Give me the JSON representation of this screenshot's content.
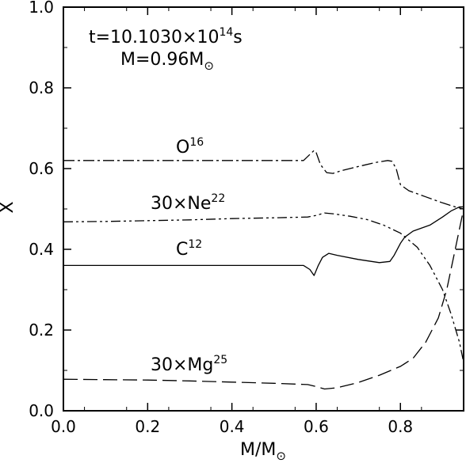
{
  "chart_data": {
    "type": "line",
    "title": "",
    "xlabel": "M/M⊙",
    "ylabel": "X",
    "xlim": [
      0.0,
      0.95
    ],
    "ylim": [
      0.0,
      1.0
    ],
    "x_ticks": [
      0.0,
      0.2,
      0.4,
      0.6,
      0.8
    ],
    "y_ticks": [
      0.0,
      0.2,
      0.4,
      0.6,
      0.8,
      1.0
    ],
    "x_tick_labels": [
      "0.0",
      "0.2",
      "0.4",
      "0.6",
      "0.8"
    ],
    "y_tick_labels": [
      "0.0",
      "0.2",
      "0.4",
      "0.6",
      "0.8",
      "1.0"
    ],
    "grid": false,
    "legend": "none",
    "annotations": {
      "time": {
        "prefix": "t=10.1030×10",
        "exponent": "14",
        "suffix": "s"
      },
      "mass": {
        "prefix": "M=0.96M",
        "subscript": "⊙"
      }
    },
    "series": [
      {
        "name": "O",
        "label_mass": "16",
        "style": "dash-dot",
        "x": [
          0.0,
          0.1,
          0.2,
          0.3,
          0.4,
          0.5,
          0.57,
          0.585,
          0.595,
          0.6,
          0.61,
          0.625,
          0.64,
          0.66,
          0.7,
          0.74,
          0.77,
          0.78,
          0.79,
          0.8,
          0.82,
          0.86,
          0.9,
          0.93,
          0.95
        ],
        "y": [
          0.62,
          0.62,
          0.62,
          0.62,
          0.62,
          0.62,
          0.62,
          0.635,
          0.645,
          0.64,
          0.61,
          0.59,
          0.588,
          0.595,
          0.605,
          0.615,
          0.62,
          0.618,
          0.6,
          0.56,
          0.545,
          0.53,
          0.515,
          0.505,
          0.5
        ]
      },
      {
        "name": "30×Ne",
        "label_mass": "22",
        "style": "dash-dot-dot",
        "x": [
          0.0,
          0.1,
          0.2,
          0.3,
          0.4,
          0.5,
          0.58,
          0.6,
          0.62,
          0.64,
          0.68,
          0.72,
          0.76,
          0.8,
          0.84,
          0.87,
          0.9,
          0.92,
          0.94,
          0.95
        ],
        "y": [
          0.468,
          0.469,
          0.471,
          0.473,
          0.476,
          0.478,
          0.48,
          0.484,
          0.49,
          0.488,
          0.482,
          0.474,
          0.46,
          0.44,
          0.405,
          0.36,
          0.3,
          0.24,
          0.17,
          0.12
        ]
      },
      {
        "name": "C",
        "label_mass": "12",
        "style": "solid",
        "x": [
          0.0,
          0.1,
          0.2,
          0.3,
          0.4,
          0.5,
          0.57,
          0.585,
          0.595,
          0.605,
          0.615,
          0.63,
          0.65,
          0.7,
          0.75,
          0.775,
          0.785,
          0.8,
          0.81,
          0.83,
          0.87,
          0.9,
          0.92,
          0.94,
          0.95
        ],
        "y": [
          0.36,
          0.36,
          0.36,
          0.36,
          0.36,
          0.36,
          0.36,
          0.35,
          0.335,
          0.36,
          0.38,
          0.39,
          0.385,
          0.375,
          0.367,
          0.37,
          0.385,
          0.415,
          0.43,
          0.445,
          0.46,
          0.48,
          0.495,
          0.505,
          0.505
        ]
      },
      {
        "name": "30×Mg",
        "label_mass": "25",
        "style": "long-dash",
        "x": [
          0.0,
          0.1,
          0.2,
          0.3,
          0.4,
          0.5,
          0.58,
          0.6,
          0.62,
          0.65,
          0.7,
          0.75,
          0.8,
          0.83,
          0.86,
          0.89,
          0.91,
          0.93,
          0.95
        ],
        "y": [
          0.078,
          0.077,
          0.076,
          0.074,
          0.071,
          0.068,
          0.065,
          0.06,
          0.054,
          0.057,
          0.07,
          0.088,
          0.11,
          0.13,
          0.17,
          0.23,
          0.3,
          0.4,
          0.5
        ]
      }
    ]
  }
}
